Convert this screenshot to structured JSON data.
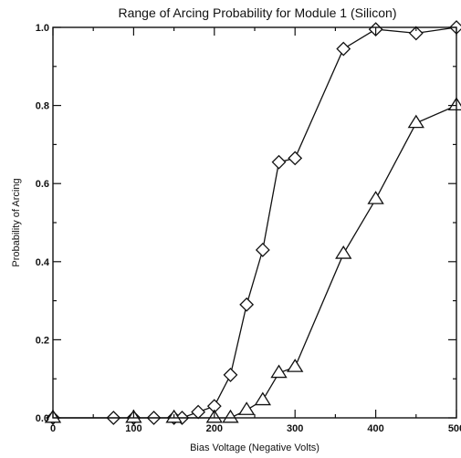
{
  "chart_data": {
    "type": "line",
    "title": "Range of Arcing Probability for Module 1 (Silicon)",
    "xlabel": "Bias Voltage (Negative Volts)",
    "ylabel": "Probability of Arcing",
    "xlim": [
      0,
      500
    ],
    "ylim": [
      0,
      1
    ],
    "xticks": [
      0,
      100,
      200,
      300,
      400,
      500
    ],
    "yticks": [
      0.0,
      0.2,
      0.4,
      0.6,
      0.8,
      1.0
    ],
    "yticklabels": [
      "0.0",
      "0.2",
      "0.4",
      "0.6",
      "0.8",
      "1.0"
    ],
    "grid": false,
    "series": [
      {
        "marker": "diamond",
        "x": [
          0,
          75,
          100,
          125,
          150,
          160,
          180,
          200,
          220,
          240,
          260,
          280,
          300,
          360,
          400,
          450,
          500
        ],
        "y": [
          0,
          0,
          0,
          0,
          0,
          0,
          0.015,
          0.03,
          0.11,
          0.29,
          0.43,
          0.655,
          0.665,
          0.945,
          0.995,
          0.985,
          1.0
        ]
      },
      {
        "marker": "triangle",
        "x": [
          0,
          100,
          150,
          200,
          220,
          240,
          260,
          280,
          300,
          360,
          400,
          450,
          500
        ],
        "y": [
          0,
          0,
          0,
          0,
          0,
          0.02,
          0.045,
          0.115,
          0.13,
          0.42,
          0.56,
          0.755,
          0.8
        ]
      }
    ]
  }
}
